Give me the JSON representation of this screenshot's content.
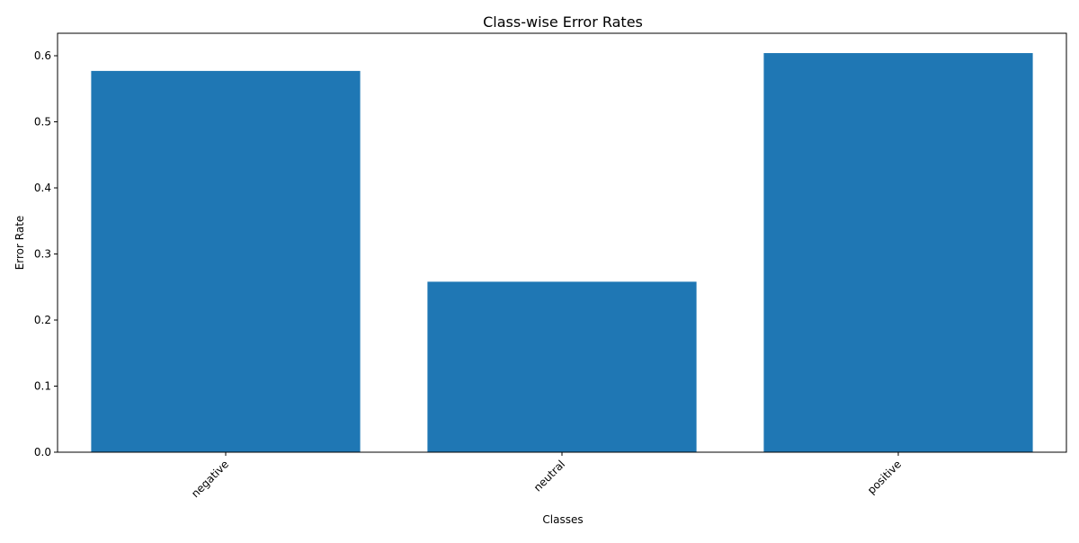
{
  "chart_data": {
    "type": "bar",
    "title": "Class-wise Error Rates",
    "xlabel": "Classes",
    "ylabel": "Error Rate",
    "categories": [
      "negative",
      "neutral",
      "positive"
    ],
    "values": [
      0.577,
      0.258,
      0.604
    ],
    "ylim": [
      0,
      0.634
    ],
    "yticks": [
      0.0,
      0.1,
      0.2,
      0.3,
      0.4,
      0.5,
      0.6
    ],
    "ytick_labels": [
      "0.0",
      "0.1",
      "0.2",
      "0.3",
      "0.4",
      "0.5",
      "0.6"
    ],
    "xtick_rotation": 45,
    "grid": false,
    "bar_color": "#1f77b4"
  }
}
